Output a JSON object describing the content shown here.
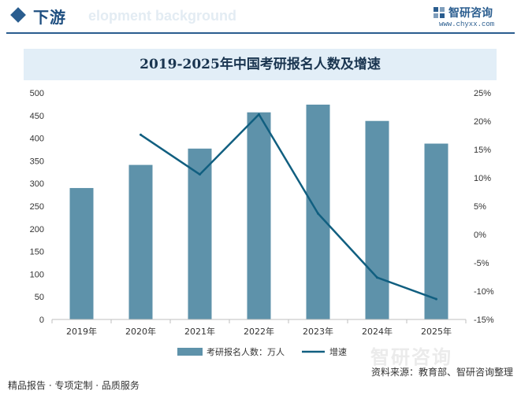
{
  "header": {
    "section_title": "下游",
    "bg_text": "elopment background",
    "brand_name": "智研咨询",
    "brand_url": "www.chyxx.com"
  },
  "chart_data": {
    "type": "bar",
    "title": "2019-2025年中国考研报名人数及增速",
    "categories": [
      "2019年",
      "2020年",
      "2021年",
      "2022年",
      "2023年",
      "2024年",
      "2025年"
    ],
    "series": [
      {
        "name": "考研报名人数：万人",
        "type": "bar",
        "axis": "left",
        "values": [
          290,
          341,
          377,
          457,
          474,
          438,
          388
        ]
      },
      {
        "name": "增速",
        "type": "line",
        "axis": "right",
        "values": [
          null,
          17.6,
          10.6,
          21.2,
          3.7,
          -7.6,
          -11.4
        ]
      }
    ],
    "ylim_left": [
      0,
      500
    ],
    "yticks_left": [
      "0",
      "50",
      "100",
      "150",
      "200",
      "250",
      "300",
      "350",
      "400",
      "450",
      "500"
    ],
    "ylim_right": [
      -15,
      25
    ],
    "yticks_right": [
      "-15%",
      "-10%",
      "-5%",
      "0%",
      "5%",
      "10%",
      "15%",
      "20%",
      "25%"
    ],
    "colors": {
      "bar": "#5e92aa",
      "line": "#115f80"
    },
    "legend": "bottom-center"
  },
  "footer": {
    "left": "精品报告 · 专项定制 · 品质服务",
    "source": "资料来源：教育部、智研咨询整理",
    "watermark": "智研咨询"
  }
}
